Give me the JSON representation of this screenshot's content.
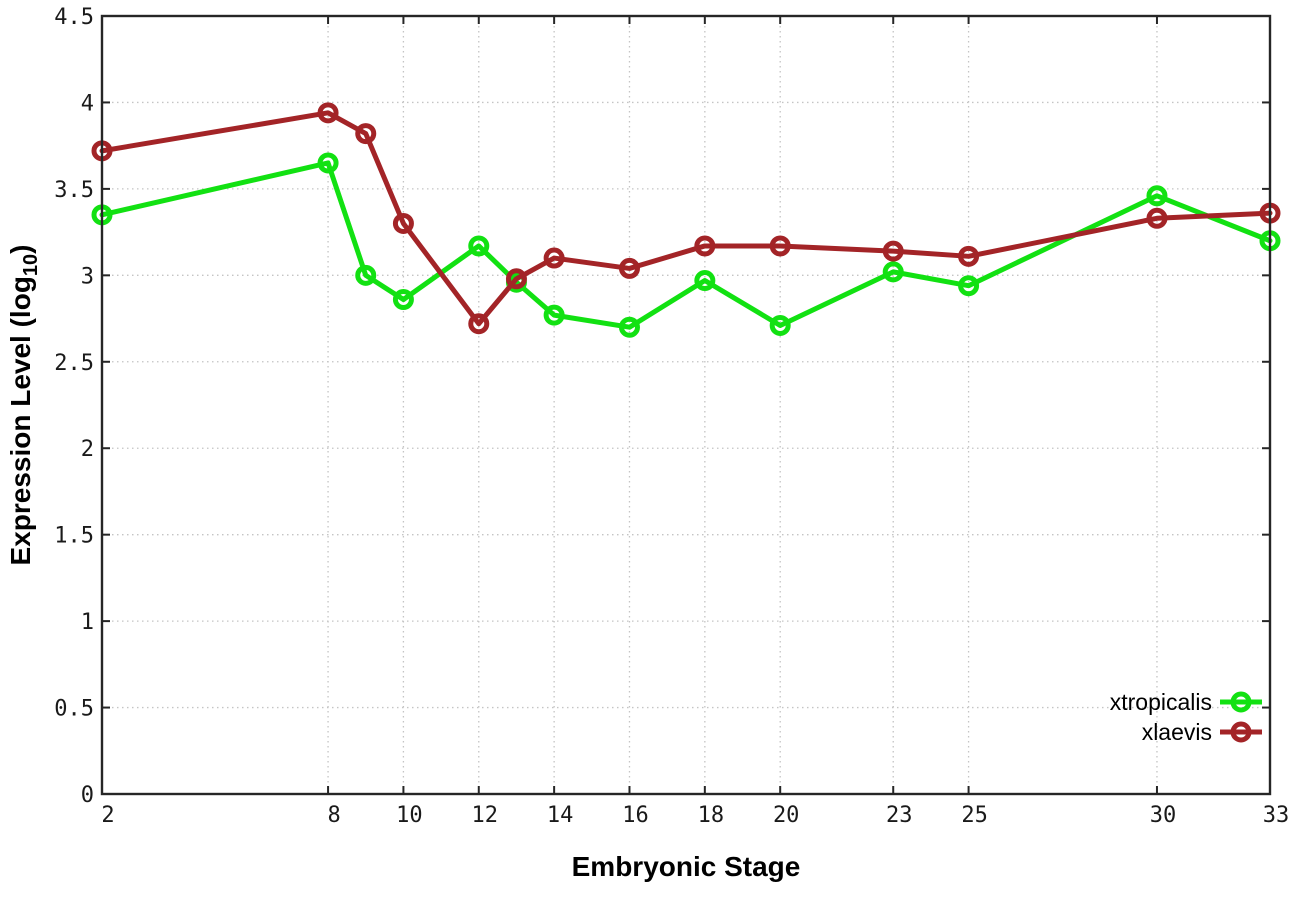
{
  "chart_data": {
    "type": "line",
    "title": "",
    "xlabel": "Embryonic Stage",
    "ylabel": "Expression Level (log10)",
    "ylabel_parts": {
      "prefix": "Expression Level (log",
      "sub": "10",
      "suffix": ")"
    },
    "xlim": [
      2,
      33
    ],
    "ylim": [
      0,
      4.5
    ],
    "x_ticks": [
      2,
      8,
      10,
      12,
      14,
      16,
      18,
      20,
      23,
      25,
      30,
      33
    ],
    "y_ticks": [
      0,
      0.5,
      1,
      1.5,
      2,
      2.5,
      3,
      3.5,
      4,
      4.5
    ],
    "grid": "dotted",
    "legend_position": "inside-bottom-right",
    "marker": "open-circle",
    "x": [
      2,
      8,
      9,
      10,
      12,
      13,
      14,
      16,
      18,
      20,
      23,
      25,
      30,
      33
    ],
    "series": [
      {
        "name": "xtropicalis",
        "color": "#12e112",
        "values": [
          3.35,
          3.65,
          3.0,
          2.86,
          3.17,
          2.96,
          2.77,
          2.7,
          2.97,
          2.71,
          3.02,
          2.94,
          3.46,
          3.2
        ]
      },
      {
        "name": "xlaevis",
        "color": "#a32427",
        "values": [
          3.72,
          3.94,
          3.82,
          3.3,
          2.72,
          2.98,
          3.1,
          3.04,
          3.17,
          3.17,
          3.14,
          3.11,
          3.33,
          3.36
        ]
      }
    ],
    "colors": {
      "background": "#ffffff",
      "border": "#262626",
      "grid": "#c4c4c4",
      "tick_text": "#1a1a1a"
    }
  }
}
